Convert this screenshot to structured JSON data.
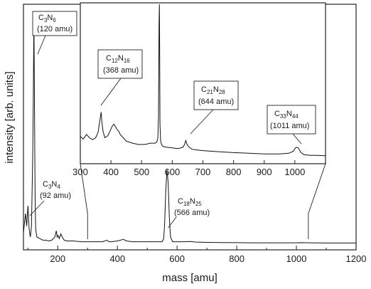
{
  "chart_data": {
    "type": "line",
    "xlabel": "mass [amu]",
    "ylabel": "intensity [arb. units]",
    "xlim": [
      85,
      1200
    ],
    "xticks": [
      "200",
      "400",
      "600",
      "800",
      "1000",
      "1200"
    ],
    "grid": false,
    "legend": "none",
    "line_color": "#111111",
    "main_spectrum": {
      "x": [
        85,
        92,
        96,
        100,
        104,
        108,
        112,
        116,
        118,
        120,
        122,
        124,
        126,
        130,
        140,
        150,
        160,
        170,
        180,
        190,
        195,
        198,
        201,
        205,
        210,
        215,
        218,
        222,
        230,
        250,
        280,
        300,
        320,
        350,
        365,
        368,
        372,
        380,
        400,
        420,
        430,
        450,
        500,
        520,
        540,
        550,
        555,
        558,
        562,
        566,
        570,
        574,
        578,
        585,
        600,
        620,
        644,
        660,
        700,
        750,
        800,
        850,
        900,
        950,
        1000,
        1011,
        1050,
        1100,
        1150,
        1200
      ],
      "y": [
        0.08,
        0.2,
        0.12,
        0.25,
        0.1,
        0.05,
        0.12,
        0.55,
        0.95,
        1.45,
        0.9,
        0.3,
        0.1,
        0.05,
        0.04,
        0.03,
        0.03,
        0.025,
        0.03,
        0.05,
        0.09,
        0.05,
        0.06,
        0.04,
        0.07,
        0.05,
        0.04,
        0.03,
        0.025,
        0.025,
        0.02,
        0.02,
        0.02,
        0.02,
        0.03,
        0.025,
        0.02,
        0.02,
        0.025,
        0.035,
        0.025,
        0.02,
        0.02,
        0.02,
        0.02,
        0.02,
        0.04,
        0.12,
        0.34,
        0.48,
        0.4,
        0.18,
        0.05,
        0.02,
        0.02,
        0.02,
        0.022,
        0.018,
        0.016,
        0.015,
        0.014,
        0.013,
        0.013,
        0.013,
        0.013,
        0.014,
        0.013,
        0.012,
        0.012,
        0.012
      ]
    },
    "inset": {
      "xlim": [
        300,
        1100
      ],
      "xticks": [
        "300",
        "400",
        "500",
        "600",
        "700",
        "800",
        "900",
        "1000"
      ],
      "zoom_region": [
        300,
        1040
      ],
      "x": [
        300,
        310,
        320,
        330,
        340,
        350,
        358,
        362,
        366,
        368,
        370,
        374,
        380,
        390,
        400,
        405,
        410,
        415,
        420,
        425,
        430,
        440,
        450,
        470,
        490,
        510,
        530,
        545,
        550,
        553,
        555,
        556,
        557,
        558,
        559,
        560,
        562,
        565,
        570,
        580,
        600,
        620,
        635,
        640,
        644,
        648,
        655,
        665,
        680,
        700,
        730,
        760,
        800,
        850,
        900,
        950,
        980,
        995,
        1000,
        1005,
        1011,
        1015,
        1020,
        1030,
        1050,
        1070,
        1100
      ],
      "y": [
        0.32,
        0.28,
        0.35,
        0.3,
        0.27,
        0.3,
        0.38,
        0.5,
        0.62,
        0.68,
        0.55,
        0.4,
        0.3,
        0.33,
        0.43,
        0.48,
        0.5,
        0.46,
        0.42,
        0.4,
        0.35,
        0.3,
        0.25,
        0.22,
        0.2,
        0.2,
        0.22,
        0.22,
        0.24,
        0.3,
        0.6,
        1.3,
        2.0,
        2.5,
        1.5,
        0.5,
        0.25,
        0.2,
        0.17,
        0.16,
        0.15,
        0.14,
        0.16,
        0.2,
        0.26,
        0.2,
        0.16,
        0.13,
        0.12,
        0.11,
        0.1,
        0.09,
        0.08,
        0.07,
        0.06,
        0.06,
        0.07,
        0.1,
        0.14,
        0.16,
        0.15,
        0.12,
        0.08,
        0.05,
        0.04,
        0.04,
        0.035
      ]
    },
    "annotations": {
      "c3n6": {
        "formula_main": "C",
        "sub1": "3",
        "mid": "N",
        "sub2": "6",
        "mass": "(120 amu)"
      },
      "c3n4": {
        "formula_main": "C",
        "sub1": "3",
        "mid": "N",
        "sub2": "4",
        "mass": "(92 amu)"
      },
      "c18n25": {
        "formula_main": "C",
        "sub1": "18",
        "mid": "N",
        "sub2": "25",
        "mass": "(566 amu)"
      },
      "c12n16": {
        "formula_main": "C",
        "sub1": "12",
        "mid": "N",
        "sub2": "16",
        "mass": "(368 amu)"
      },
      "c21n28": {
        "formula_main": "C",
        "sub1": "21",
        "mid": "N",
        "sub2": "28",
        "mass": "(644 amu)"
      },
      "c33n44": {
        "formula_main": "C",
        "sub1": "33",
        "mid": "N",
        "sub2": "44",
        "mass": "(1011 amu)"
      }
    }
  }
}
